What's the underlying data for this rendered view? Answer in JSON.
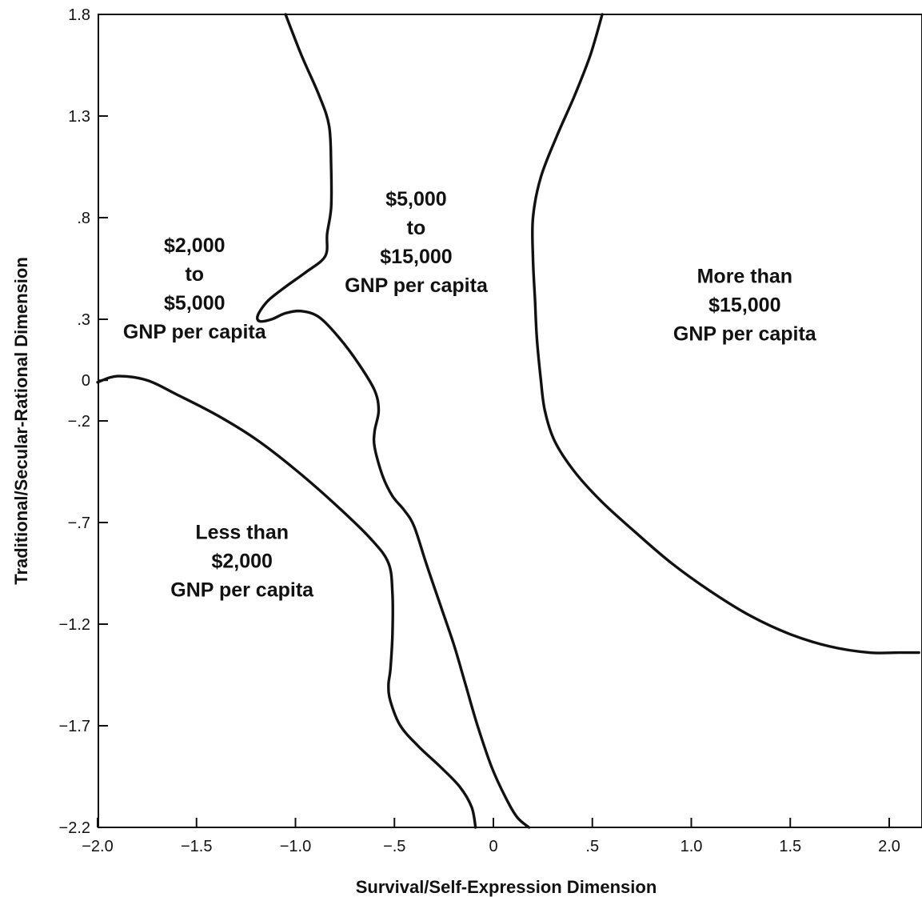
{
  "chart_data": {
    "type": "line",
    "title": "",
    "xlabel": "Survival/Self-Expression Dimension",
    "ylabel": "Traditional/Secular-Rational Dimension",
    "xlim": [
      -2.0,
      2.15
    ],
    "ylim": [
      -2.2,
      1.8
    ],
    "x_ticks": [
      {
        "value": -2.0,
        "label": "−2.0"
      },
      {
        "value": -1.5,
        "label": "−1.5"
      },
      {
        "value": -1.0,
        "label": "−1.0"
      },
      {
        "value": -0.5,
        "label": "−.5"
      },
      {
        "value": 0,
        "label": "0"
      },
      {
        "value": 0.5,
        "label": ".5"
      },
      {
        "value": 1.0,
        "label": "1.0"
      },
      {
        "value": 1.5,
        "label": "1.5"
      },
      {
        "value": 2.0,
        "label": "2.0"
      }
    ],
    "y_ticks": [
      {
        "value": 1.8,
        "label": "1.8"
      },
      {
        "value": 1.3,
        "label": "1.3"
      },
      {
        "value": 0.8,
        "label": ".8"
      },
      {
        "value": 0.3,
        "label": ".3"
      },
      {
        "value": 0,
        "label": "0"
      },
      {
        "value": -0.2,
        "label": "−.2"
      },
      {
        "value": -0.7,
        "label": "−.7"
      },
      {
        "value": -1.2,
        "label": "−1.2"
      },
      {
        "value": -1.7,
        "label": "−1.7"
      },
      {
        "value": -2.2,
        "label": "−2.2"
      }
    ],
    "grid": false,
    "series": [
      {
        "points": [
          [
            -2.0,
            -0.01
          ],
          [
            -1.9,
            0.02
          ],
          [
            -1.75,
            0.0
          ],
          [
            -1.6,
            -0.07
          ],
          [
            -1.4,
            -0.17
          ],
          [
            -1.2,
            -0.29
          ],
          [
            -1.0,
            -0.44
          ],
          [
            -0.8,
            -0.61
          ],
          [
            -0.62,
            -0.78
          ],
          [
            -0.53,
            -0.9
          ],
          [
            -0.51,
            -1.05
          ],
          [
            -0.51,
            -1.25
          ],
          [
            -0.52,
            -1.42
          ],
          [
            -0.53,
            -1.5
          ],
          [
            -0.52,
            -1.58
          ],
          [
            -0.47,
            -1.7
          ],
          [
            -0.38,
            -1.8
          ],
          [
            -0.27,
            -1.9
          ],
          [
            -0.17,
            -2.0
          ],
          [
            -0.11,
            -2.1
          ],
          [
            -0.09,
            -2.2
          ]
        ]
      },
      {
        "points": [
          [
            -1.05,
            1.8
          ],
          [
            -0.97,
            1.6
          ],
          [
            -0.88,
            1.4
          ],
          [
            -0.83,
            1.25
          ],
          [
            -0.82,
            1.05
          ],
          [
            -0.82,
            0.85
          ],
          [
            -0.84,
            0.72
          ],
          [
            -0.85,
            0.61
          ],
          [
            -0.95,
            0.53
          ],
          [
            -1.05,
            0.46
          ],
          [
            -1.14,
            0.39
          ],
          [
            -1.19,
            0.32
          ],
          [
            -1.18,
            0.29
          ],
          [
            -1.12,
            0.3
          ],
          [
            -1.05,
            0.33
          ],
          [
            -0.97,
            0.34
          ],
          [
            -0.88,
            0.31
          ],
          [
            -0.78,
            0.21
          ],
          [
            -0.68,
            0.08
          ],
          [
            -0.6,
            -0.05
          ],
          [
            -0.58,
            -0.15
          ],
          [
            -0.6,
            -0.25
          ],
          [
            -0.6,
            -0.33
          ],
          [
            -0.56,
            -0.47
          ],
          [
            -0.51,
            -0.57
          ],
          [
            -0.45,
            -0.64
          ],
          [
            -0.4,
            -0.72
          ],
          [
            -0.34,
            -0.9
          ],
          [
            -0.27,
            -1.1
          ],
          [
            -0.2,
            -1.3
          ],
          [
            -0.14,
            -1.5
          ],
          [
            -0.08,
            -1.7
          ],
          [
            -0.01,
            -1.9
          ],
          [
            0.06,
            -2.05
          ],
          [
            0.12,
            -2.15
          ],
          [
            0.18,
            -2.2
          ]
        ]
      },
      {
        "points": [
          [
            0.55,
            1.8
          ],
          [
            0.49,
            1.6
          ],
          [
            0.41,
            1.4
          ],
          [
            0.32,
            1.2
          ],
          [
            0.24,
            1.0
          ],
          [
            0.2,
            0.8
          ],
          [
            0.2,
            0.6
          ],
          [
            0.21,
            0.4
          ],
          [
            0.22,
            0.2
          ],
          [
            0.24,
            0.0
          ],
          [
            0.26,
            -0.15
          ],
          [
            0.31,
            -0.3
          ],
          [
            0.41,
            -0.45
          ],
          [
            0.55,
            -0.6
          ],
          [
            0.72,
            -0.75
          ],
          [
            0.9,
            -0.9
          ],
          [
            1.1,
            -1.04
          ],
          [
            1.3,
            -1.16
          ],
          [
            1.5,
            -1.25
          ],
          [
            1.7,
            -1.31
          ],
          [
            1.9,
            -1.34
          ],
          [
            2.05,
            -1.34
          ],
          [
            2.15,
            -1.34
          ]
        ]
      }
    ],
    "annotations": [
      {
        "lines": [
          "$2,000",
          "to",
          "$5,000",
          "GNP per capita"
        ],
        "x": -1.51,
        "y": 0.63
      },
      {
        "lines": [
          "$5,000",
          "to",
          "$15,000",
          "GNP per capita"
        ],
        "x": -0.39,
        "y": 0.86
      },
      {
        "lines": [
          "More than",
          "$15,000",
          "GNP per capita"
        ],
        "x": 1.27,
        "y": 0.48
      },
      {
        "lines": [
          "Less than",
          "$2,000",
          "GNP per capita"
        ],
        "x": -1.27,
        "y": -0.78
      }
    ]
  }
}
